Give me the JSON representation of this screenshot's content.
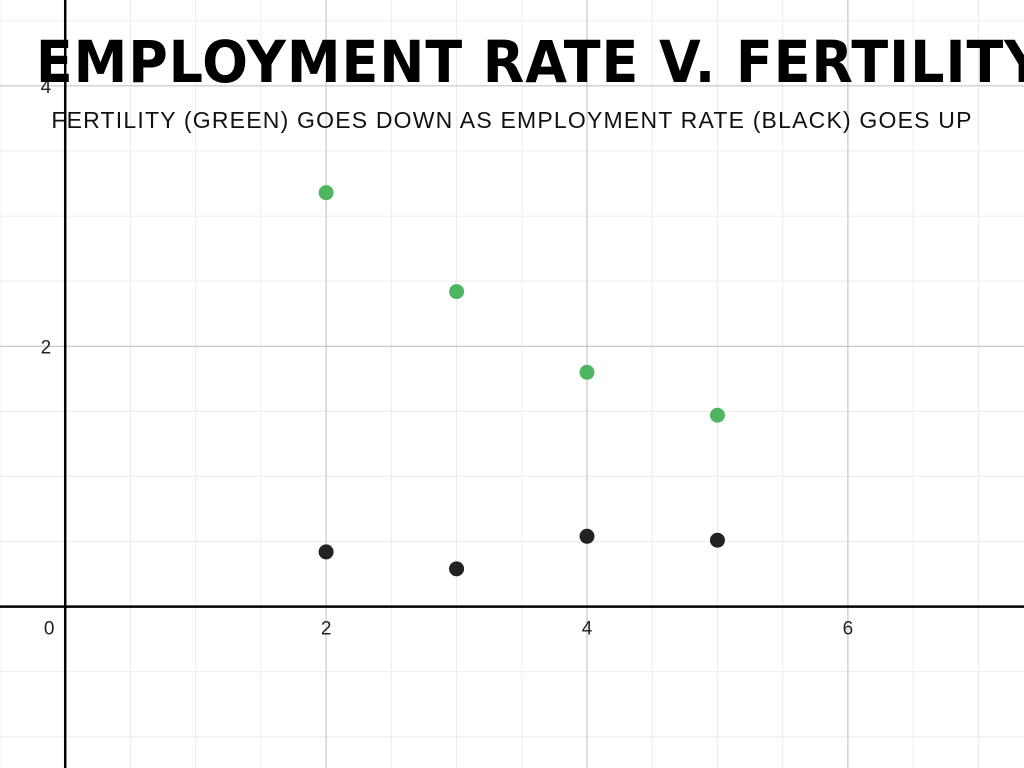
{
  "chart_data": {
    "type": "scatter",
    "title": "EMPLOYMENT RATE V. FERTILITY",
    "subtitle": "FERTILITY (GREEN) GOES DOWN AS EMPLOYMENT RATE (BLACK) GOES UP",
    "xlabel": "",
    "ylabel": "",
    "xlim": [
      -0.5,
      7.35
    ],
    "ylim": [
      -1.24,
      4.66
    ],
    "x_ticks": [
      0,
      2,
      4,
      6
    ],
    "y_ticks": [
      2,
      4
    ],
    "x_tick_labels": [
      "0",
      "2",
      "4",
      "6"
    ],
    "y_tick_labels": [
      "2",
      "4"
    ],
    "grid": true,
    "minor_grid": true,
    "legend": "none",
    "series": [
      {
        "color": "#4fb560",
        "x": [
          2,
          3,
          4,
          5
        ],
        "y": [
          3.18,
          2.42,
          1.8,
          1.47
        ]
      },
      {
        "color": "#222222",
        "x": [
          2,
          3,
          4,
          5
        ],
        "y": [
          0.42,
          0.29,
          0.54,
          0.51
        ]
      }
    ]
  }
}
